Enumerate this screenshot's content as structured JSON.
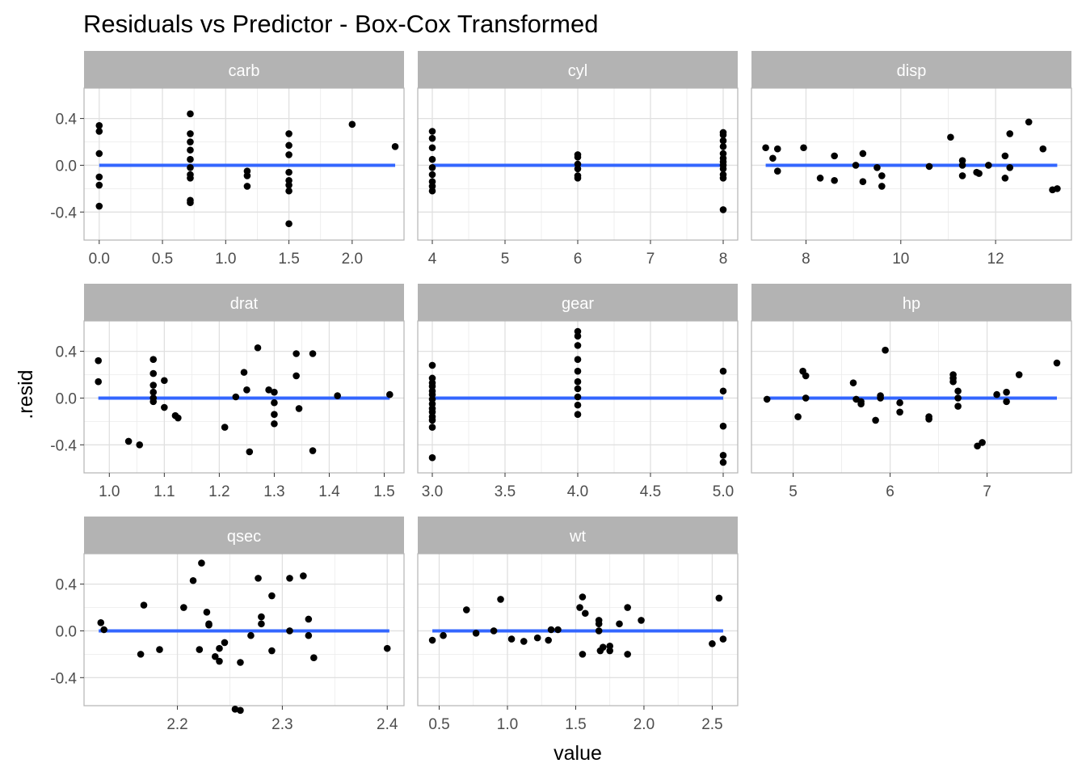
{
  "chart_data": {
    "type": "scatter",
    "title": "Residuals vs Predictor - Box-Cox Transformed",
    "xlabel": "value",
    "ylabel": ".resid",
    "colors": {
      "points": "#000000",
      "line": "#3366FF",
      "strip": "#b3b3b3",
      "strip_text": "#ffffff",
      "grid": "#ebebeb",
      "axis_text": "#4d4d4d"
    },
    "y_ticks": [
      -0.4,
      0.0,
      0.4
    ],
    "y_tick_labels": [
      "-0.4",
      "0.0",
      "0.4"
    ],
    "panels": [
      {
        "name": "carb",
        "x_ticks": [
          0.0,
          0.5,
          1.0,
          1.5,
          2.0
        ],
        "x_tick_labels": [
          "0.0",
          "0.5",
          "1.0",
          "1.5",
          "2.0"
        ],
        "line": [
          0.0,
          2.34
        ],
        "points": [
          [
            0,
            0.34
          ],
          [
            0,
            0.29
          ],
          [
            0,
            0.1
          ],
          [
            0,
            -0.1
          ],
          [
            0,
            -0.17
          ],
          [
            0,
            -0.35
          ],
          [
            0.72,
            0.44
          ],
          [
            0.72,
            0.27
          ],
          [
            0.72,
            0.2
          ],
          [
            0.72,
            0.13
          ],
          [
            0.72,
            0.05
          ],
          [
            0.72,
            -0.02
          ],
          [
            0.72,
            -0.08
          ],
          [
            0.72,
            -0.11
          ],
          [
            0.72,
            -0.3
          ],
          [
            0.72,
            -0.32
          ],
          [
            1.17,
            -0.05
          ],
          [
            1.17,
            -0.09
          ],
          [
            1.17,
            -0.18
          ],
          [
            1.5,
            0.27
          ],
          [
            1.5,
            0.17
          ],
          [
            1.5,
            0.09
          ],
          [
            1.5,
            -0.06
          ],
          [
            1.5,
            -0.13
          ],
          [
            1.5,
            -0.17
          ],
          [
            1.5,
            -0.22
          ],
          [
            1.5,
            -0.5
          ],
          [
            2.0,
            0.35
          ],
          [
            2.34,
            0.16
          ]
        ]
      },
      {
        "name": "cyl",
        "x_ticks": [
          4,
          5,
          6,
          7,
          8
        ],
        "x_tick_labels": [
          "4",
          "5",
          "6",
          "7",
          "8"
        ],
        "line": [
          4,
          8
        ],
        "points": [
          [
            4,
            0.29
          ],
          [
            4,
            0.23
          ],
          [
            4,
            0.15
          ],
          [
            4,
            0.05
          ],
          [
            4,
            -0.02
          ],
          [
            4,
            -0.08
          ],
          [
            4,
            -0.14
          ],
          [
            4,
            -0.18
          ],
          [
            4,
            -0.22
          ],
          [
            6,
            0.09
          ],
          [
            6,
            0.07
          ],
          [
            6,
            0.01
          ],
          [
            6,
            -0.03
          ],
          [
            6,
            -0.09
          ],
          [
            6,
            -0.11
          ],
          [
            8,
            0.28
          ],
          [
            8,
            0.26
          ],
          [
            8,
            0.21
          ],
          [
            8,
            0.16
          ],
          [
            8,
            0.1
          ],
          [
            8,
            0.06
          ],
          [
            8,
            0.03
          ],
          [
            8,
            0.0
          ],
          [
            8,
            -0.03
          ],
          [
            8,
            -0.08
          ],
          [
            8,
            -0.11
          ],
          [
            8,
            -0.38
          ]
        ]
      },
      {
        "name": "disp",
        "x_ticks": [
          8,
          10,
          12
        ],
        "x_tick_labels": [
          "8",
          "10",
          "12"
        ],
        "line": [
          7.15,
          13.3
        ],
        "points": [
          [
            7.15,
            0.15
          ],
          [
            7.3,
            0.06
          ],
          [
            7.4,
            0.14
          ],
          [
            7.4,
            -0.05
          ],
          [
            7.95,
            0.15
          ],
          [
            8.3,
            -0.11
          ],
          [
            8.6,
            0.08
          ],
          [
            8.6,
            -0.13
          ],
          [
            9.05,
            0.0
          ],
          [
            9.2,
            0.1
          ],
          [
            9.2,
            -0.14
          ],
          [
            9.5,
            -0.02
          ],
          [
            9.6,
            -0.09
          ],
          [
            9.6,
            -0.18
          ],
          [
            10.6,
            -0.01
          ],
          [
            11.05,
            0.24
          ],
          [
            11.3,
            0.04
          ],
          [
            11.3,
            0.0
          ],
          [
            11.3,
            -0.09
          ],
          [
            11.6,
            -0.06
          ],
          [
            11.65,
            -0.07
          ],
          [
            11.85,
            0.0
          ],
          [
            12.2,
            0.08
          ],
          [
            12.2,
            -0.11
          ],
          [
            12.3,
            0.27
          ],
          [
            12.3,
            -0.02
          ],
          [
            12.7,
            0.37
          ],
          [
            13.0,
            0.14
          ],
          [
            13.2,
            -0.21
          ],
          [
            13.3,
            -0.2
          ]
        ]
      },
      {
        "name": "drat",
        "x_ticks": [
          1.0,
          1.1,
          1.2,
          1.3,
          1.4,
          1.5
        ],
        "x_tick_labels": [
          "1.0",
          "1.1",
          "1.2",
          "1.3",
          "1.4",
          "1.5"
        ],
        "line": [
          0.98,
          1.51
        ],
        "points": [
          [
            0.98,
            0.32
          ],
          [
            0.98,
            0.14
          ],
          [
            1.035,
            -0.37
          ],
          [
            1.055,
            -0.4
          ],
          [
            1.08,
            0.33
          ],
          [
            1.08,
            0.21
          ],
          [
            1.08,
            0.11
          ],
          [
            1.08,
            0.05
          ],
          [
            1.08,
            0.0
          ],
          [
            1.08,
            -0.03
          ],
          [
            1.1,
            0.15
          ],
          [
            1.1,
            -0.08
          ],
          [
            1.12,
            -0.15
          ],
          [
            1.125,
            -0.17
          ],
          [
            1.21,
            -0.25
          ],
          [
            1.23,
            0.01
          ],
          [
            1.245,
            0.22
          ],
          [
            1.25,
            0.07
          ],
          [
            1.255,
            -0.46
          ],
          [
            1.27,
            0.43
          ],
          [
            1.29,
            0.07
          ],
          [
            1.3,
            0.05
          ],
          [
            1.3,
            -0.04
          ],
          [
            1.3,
            -0.14
          ],
          [
            1.3,
            -0.22
          ],
          [
            1.34,
            0.38
          ],
          [
            1.34,
            0.19
          ],
          [
            1.345,
            -0.09
          ],
          [
            1.37,
            0.38
          ],
          [
            1.37,
            -0.45
          ],
          [
            1.415,
            0.02
          ],
          [
            1.51,
            0.03
          ]
        ]
      },
      {
        "name": "gear",
        "x_ticks": [
          3.0,
          3.5,
          4.0,
          4.5,
          5.0
        ],
        "x_tick_labels": [
          "3.0",
          "3.5",
          "4.0",
          "4.5",
          "5.0"
        ],
        "line": [
          3.0,
          5.0
        ],
        "points": [
          [
            3,
            0.28
          ],
          [
            3,
            0.17
          ],
          [
            3,
            0.13
          ],
          [
            3,
            0.1
          ],
          [
            3,
            0.06
          ],
          [
            3,
            0.03
          ],
          [
            3,
            -0.01
          ],
          [
            3,
            -0.05
          ],
          [
            3,
            -0.09
          ],
          [
            3,
            -0.12
          ],
          [
            3,
            -0.16
          ],
          [
            3,
            -0.19
          ],
          [
            3,
            -0.25
          ],
          [
            3,
            -0.51
          ],
          [
            4,
            0.57
          ],
          [
            4,
            0.53
          ],
          [
            4,
            0.45
          ],
          [
            4,
            0.33
          ],
          [
            4,
            0.23
          ],
          [
            4,
            0.14
          ],
          [
            4,
            0.08
          ],
          [
            4,
            0.01
          ],
          [
            4,
            -0.06
          ],
          [
            4,
            -0.14
          ],
          [
            5,
            0.23
          ],
          [
            5,
            0.06
          ],
          [
            5,
            -0.24
          ],
          [
            5,
            -0.49
          ],
          [
            5,
            -0.55
          ]
        ]
      },
      {
        "name": "hp",
        "x_ticks": [
          5,
          6,
          7
        ],
        "x_tick_labels": [
          "5",
          "6",
          "7"
        ],
        "line": [
          4.72,
          7.72
        ],
        "points": [
          [
            4.73,
            -0.01
          ],
          [
            5.05,
            -0.16
          ],
          [
            5.1,
            0.23
          ],
          [
            5.13,
            0.19
          ],
          [
            5.13,
            0.0
          ],
          [
            5.62,
            0.13
          ],
          [
            5.65,
            -0.01
          ],
          [
            5.7,
            -0.03
          ],
          [
            5.7,
            -0.05
          ],
          [
            5.85,
            -0.19
          ],
          [
            5.9,
            0.02
          ],
          [
            5.9,
            0.0
          ],
          [
            5.95,
            0.41
          ],
          [
            6.1,
            -0.04
          ],
          [
            6.1,
            -0.12
          ],
          [
            6.4,
            -0.16
          ],
          [
            6.4,
            -0.18
          ],
          [
            6.65,
            0.2
          ],
          [
            6.65,
            0.17
          ],
          [
            6.65,
            0.14
          ],
          [
            6.7,
            0.06
          ],
          [
            6.7,
            0.0
          ],
          [
            6.7,
            -0.07
          ],
          [
            6.9,
            -0.41
          ],
          [
            6.95,
            -0.38
          ],
          [
            7.1,
            0.03
          ],
          [
            7.2,
            0.05
          ],
          [
            7.2,
            -0.03
          ],
          [
            7.33,
            0.2
          ],
          [
            7.72,
            0.3
          ]
        ]
      },
      {
        "name": "qsec",
        "x_ticks": [
          2.2,
          2.3,
          2.4
        ],
        "x_tick_labels": [
          "2.2",
          "2.3",
          "2.4"
        ],
        "line": [
          2.125,
          2.402
        ],
        "points": [
          [
            2.127,
            0.07
          ],
          [
            2.13,
            0.01
          ],
          [
            2.165,
            -0.2
          ],
          [
            2.168,
            0.22
          ],
          [
            2.183,
            -0.16
          ],
          [
            2.206,
            0.2
          ],
          [
            2.215,
            0.43
          ],
          [
            2.221,
            -0.16
          ],
          [
            2.223,
            0.58
          ],
          [
            2.228,
            0.16
          ],
          [
            2.23,
            0.06
          ],
          [
            2.23,
            0.05
          ],
          [
            2.236,
            -0.22
          ],
          [
            2.24,
            -0.26
          ],
          [
            2.24,
            -0.15
          ],
          [
            2.245,
            -0.1
          ],
          [
            2.255,
            -0.67
          ],
          [
            2.26,
            -0.68
          ],
          [
            2.26,
            -0.27
          ],
          [
            2.27,
            -0.04
          ],
          [
            2.277,
            0.45
          ],
          [
            2.28,
            0.12
          ],
          [
            2.28,
            0.06
          ],
          [
            2.29,
            0.3
          ],
          [
            2.29,
            -0.17
          ],
          [
            2.307,
            0.45
          ],
          [
            2.307,
            0.0
          ],
          [
            2.32,
            0.47
          ],
          [
            2.325,
            0.1
          ],
          [
            2.325,
            -0.04
          ],
          [
            2.33,
            -0.23
          ],
          [
            2.4,
            -0.15
          ]
        ]
      },
      {
        "name": "wt",
        "x_ticks": [
          0.5,
          1.0,
          1.5,
          2.0,
          2.5
        ],
        "x_tick_labels": [
          "0.5",
          "1.0",
          "1.5",
          "2.0",
          "2.5"
        ],
        "line": [
          0.45,
          2.58
        ],
        "points": [
          [
            0.45,
            -0.08
          ],
          [
            0.53,
            -0.04
          ],
          [
            0.7,
            0.18
          ],
          [
            0.77,
            -0.02
          ],
          [
            0.9,
            0.0
          ],
          [
            0.95,
            0.27
          ],
          [
            1.03,
            -0.07
          ],
          [
            1.12,
            -0.09
          ],
          [
            1.22,
            -0.06
          ],
          [
            1.3,
            -0.08
          ],
          [
            1.32,
            0.01
          ],
          [
            1.37,
            0.01
          ],
          [
            1.53,
            0.2
          ],
          [
            1.55,
            0.29
          ],
          [
            1.55,
            -0.2
          ],
          [
            1.57,
            0.15
          ],
          [
            1.67,
            0.09
          ],
          [
            1.67,
            0.06
          ],
          [
            1.67,
            0.0
          ],
          [
            1.68,
            -0.17
          ],
          [
            1.7,
            -0.14
          ],
          [
            1.75,
            -0.13
          ],
          [
            1.75,
            -0.17
          ],
          [
            1.82,
            0.06
          ],
          [
            1.88,
            0.2
          ],
          [
            1.88,
            -0.2
          ],
          [
            1.98,
            0.09
          ],
          [
            2.5,
            -0.11
          ],
          [
            2.55,
            0.28
          ],
          [
            2.58,
            -0.07
          ]
        ]
      }
    ]
  }
}
